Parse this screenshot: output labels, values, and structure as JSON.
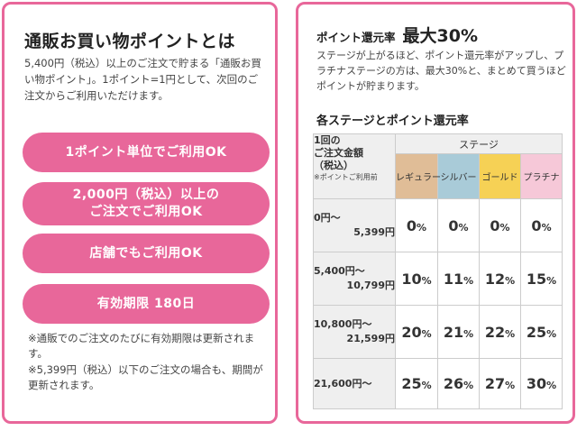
{
  "left_card": {
    "title": "通販お買い物ポイントとは",
    "description": "5,400円（税込）以上のご注文で貯まる「通販お買い物ポイント」。1ポイント=1円として、次回のご注文からご利用いただけます。",
    "pills": [
      {
        "line1": "1ポイント単位でご利用OK",
        "line2": ""
      },
      {
        "line1": "2,000円（税込）以上の",
        "line2": "ご注文でご利用OK"
      },
      {
        "line1": "店舗でもご利用OK",
        "line2": ""
      },
      {
        "line1": "有効期限 180日",
        "line2": ""
      }
    ],
    "notes": [
      "※通販でのご注文のたびに有効期限は更新されます。",
      "※5,399円（税込）以下のご注文の場合も、期間が更新されます。"
    ]
  },
  "right_card": {
    "rate_label": "ポイント還元率",
    "rate_max": "最大30%",
    "description": "ステージが上がるほど、ポイント還元率がアップし、プラチナステージの方は、最大30%と、まとめて買うほどポイントが貯まります。",
    "table_title": "各ステージとポイント還元率",
    "table": {
      "amount_header": [
        "1回の",
        "ご注文金額",
        "（税込）"
      ],
      "amount_header_sub": "※ポイントご利用前",
      "stage_header": "ステージ",
      "stages": [
        {
          "name": "レギュラー",
          "color": "#e0bd97"
        },
        {
          "name": "シルバー",
          "color": "#a9cbd8"
        },
        {
          "name": "ゴールド",
          "color": "#f6d155"
        },
        {
          "name": "プラチナ",
          "color": "#f6c8d8"
        }
      ],
      "rows": [
        {
          "amount_from": "0円～",
          "amount_to": "5,399円",
          "rates": [
            "0",
            "0",
            "0",
            "0"
          ]
        },
        {
          "amount_from": "5,400円～",
          "amount_to": "10,799円",
          "rates": [
            "10",
            "11",
            "12",
            "15"
          ]
        },
        {
          "amount_from": "10,800円～",
          "amount_to": "21,599円",
          "rates": [
            "20",
            "21",
            "22",
            "25"
          ]
        },
        {
          "amount_from": "21,600円～",
          "amount_to": "",
          "rates": [
            "25",
            "26",
            "27",
            "30"
          ]
        }
      ],
      "percent_sign": "%"
    }
  },
  "colors": {
    "accent_pink": "#e8679a",
    "header_gray": "#efefef"
  }
}
